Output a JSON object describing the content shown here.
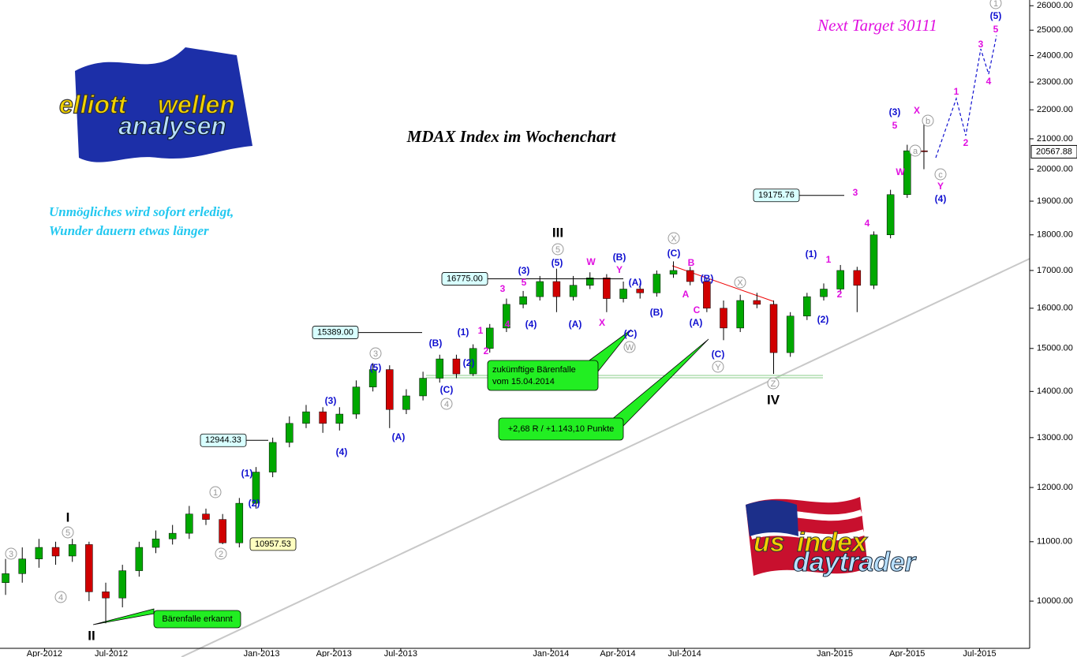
{
  "chart_data": {
    "type": "candlestick",
    "title": "MDAX Index im Wochenchart",
    "quote": [
      "Unmögliches wird sofort erledigt,",
      "Wunder dauern etwas länger"
    ],
    "target_text": "Next Target 30111",
    "logo_texts": [
      "elliott",
      "wellen",
      "analysen",
      "us",
      "index",
      "daytrader"
    ],
    "callouts": [
      "Bärenfalle erkannt",
      "zukümftige Bärenfalle",
      "vom 15.04.2014",
      "+2,68 R / +1.143,10 Punkte"
    ],
    "x": [
      0,
      3,
      6,
      9,
      12,
      15,
      18,
      21,
      24,
      27,
      30,
      33,
      36,
      39,
      42,
      45,
      48,
      51,
      54,
      57,
      60,
      63,
      66,
      69,
      72,
      75,
      78,
      81,
      84,
      87,
      90,
      93,
      96,
      99,
      102,
      105,
      108,
      111,
      114,
      117,
      120,
      123,
      126,
      129,
      132,
      135,
      138,
      141,
      144,
      147,
      150,
      153,
      156,
      159,
      162,
      165
    ],
    "open": [
      10300,
      10450,
      10700,
      10900,
      10750,
      10950,
      10150,
      10050,
      10500,
      10900,
      11050,
      11150,
      11500,
      11400,
      10980,
      11700,
      12300,
      12900,
      13300,
      13550,
      13300,
      13500,
      14100,
      14500,
      13600,
      13900,
      14300,
      14750,
      14400,
      15000,
      15500,
      16100,
      16300,
      16700,
      16300,
      16600,
      16800,
      16250,
      16500,
      16400,
      16900,
      17000,
      16700,
      16000,
      15500,
      16200,
      16100,
      14900,
      15800,
      16300,
      16500,
      17000,
      16600,
      18000,
      19200,
      20600
    ],
    "high": [
      10700,
      10900,
      11050,
      11000,
      11050,
      11000,
      10300,
      10600,
      11000,
      11200,
      11300,
      11650,
      11600,
      11500,
      11800,
      12400,
      13000,
      13450,
      13700,
      13650,
      13650,
      14250,
      14650,
      14600,
      14050,
      14450,
      14850,
      14850,
      15100,
      15600,
      16250,
      16450,
      16850,
      17050,
      16850,
      16950,
      16900,
      16700,
      16650,
      17000,
      17250,
      17100,
      16800,
      16200,
      16350,
      16400,
      16200,
      15900,
      16400,
      16650,
      17150,
      17100,
      18100,
      19350,
      20800,
      21700
    ],
    "low": [
      10100,
      10300,
      10550,
      10600,
      10650,
      10000,
      9650,
      9900,
      10400,
      10800,
      10950,
      11050,
      11300,
      10957,
      10900,
      11600,
      12200,
      12800,
      13200,
      13100,
      13150,
      13400,
      14000,
      13200,
      13500,
      13800,
      14200,
      14300,
      14350,
      14900,
      15400,
      16000,
      16200,
      15900,
      16200,
      16500,
      15900,
      16150,
      16250,
      16300,
      16800,
      16600,
      15900,
      15200,
      15400,
      16000,
      14400,
      14800,
      15700,
      16200,
      16400,
      15900,
      16500,
      17900,
      19100,
      20000
    ],
    "close": [
      10450,
      10700,
      10900,
      10750,
      10950,
      10150,
      10050,
      10500,
      10900,
      11050,
      11150,
      11500,
      11400,
      10980,
      11700,
      12300,
      12900,
      13300,
      13550,
      13300,
      13500,
      14100,
      14500,
      13600,
      13900,
      14300,
      14750,
      14400,
      15000,
      15500,
      16100,
      16300,
      16700,
      16300,
      16600,
      16800,
      16250,
      16500,
      16400,
      16900,
      17000,
      16700,
      16000,
      15500,
      16200,
      16100,
      14900,
      15800,
      16300,
      16500,
      17000,
      16600,
      18000,
      19200,
      20600,
      20568
    ],
    "up_color": "#00a800",
    "down_color": "#d00000",
    "xlim": [
      -1,
      184
    ],
    "xticks": [
      {
        "value": 7,
        "label": "Apr-2012"
      },
      {
        "value": 19,
        "label": "Jul-2012"
      },
      {
        "value": 46,
        "label": "Jan-2013"
      },
      {
        "value": 59,
        "label": "Apr-2013"
      },
      {
        "value": 71,
        "label": "Jul-2013"
      },
      {
        "value": 98,
        "label": "Jan-2014"
      },
      {
        "value": 110,
        "label": "Apr-2014"
      },
      {
        "value": 122,
        "label": "Jul-2014"
      },
      {
        "value": 149,
        "label": "Jan-2015"
      },
      {
        "value": 162,
        "label": "Apr-2015"
      },
      {
        "value": 175,
        "label": "Jul-2015"
      }
    ],
    "ylim": [
      9270,
      26240
    ],
    "log_scale": true,
    "yticks": [
      {
        "value": 10000,
        "label": "10000.00"
      },
      {
        "value": 11000,
        "label": "11000.00"
      },
      {
        "value": 12000,
        "label": "12000.00"
      },
      {
        "value": 13000,
        "label": "13000.00"
      },
      {
        "value": 14000,
        "label": "14000.00"
      },
      {
        "value": 15000,
        "label": "15000.00"
      },
      {
        "value": 16000,
        "label": "16000.00"
      },
      {
        "value": 17000,
        "label": "17000.00"
      },
      {
        "value": 18000,
        "label": "18000.00"
      },
      {
        "value": 19000,
        "label": "19000.00"
      },
      {
        "value": 20000,
        "label": "20000.00"
      },
      {
        "value": 21000,
        "label": "21000.00"
      },
      {
        "value": 22000,
        "label": "22000.00"
      },
      {
        "value": 23000,
        "label": "23000.00"
      },
      {
        "value": 24000,
        "label": "24000.00"
      },
      {
        "value": 25000,
        "label": "25000.00"
      },
      {
        "value": 26000,
        "label": "26000.00"
      }
    ],
    "last_price": {
      "value": 20567.88,
      "label": "20567.88"
    },
    "levels": [
      {
        "value": 10957.53,
        "label": "10957.53"
      },
      {
        "value": 12944.33,
        "label": "12944.33"
      },
      {
        "value": 15389.0,
        "label": "15389.00"
      },
      {
        "value": 16775.0,
        "label": "16775.00"
      },
      {
        "value": 19175.76,
        "label": "19175.76"
      }
    ],
    "wave_labels": [
      "3",
      "4",
      "5",
      "I",
      "II",
      "1",
      "2",
      "(1)",
      "(2)",
      "(3)",
      "(4)",
      "3",
      "(5)",
      "(A)",
      "(B)",
      "(C)",
      "4",
      "(1)",
      "(2)",
      "1",
      "2",
      "3",
      "4",
      "5",
      "(3)",
      "(4)",
      "III",
      "5",
      "(5)",
      "(A)",
      "W",
      "X",
      "(B)",
      "Y",
      "(A)",
      "(B)",
      "(C)",
      "W",
      "X",
      "(C)",
      "B",
      "(B)",
      "A",
      "C",
      "(A)",
      "(C)",
      "Y",
      "X",
      "Z",
      "IV",
      "(1)",
      "1",
      "(2)",
      "2",
      "3",
      "4",
      "(3)",
      "5",
      "X",
      "W",
      "b",
      "a",
      "c",
      "Y",
      "(4)",
      "1",
      "2",
      "3",
      "4",
      "5",
      "(5)",
      "1"
    ]
  }
}
